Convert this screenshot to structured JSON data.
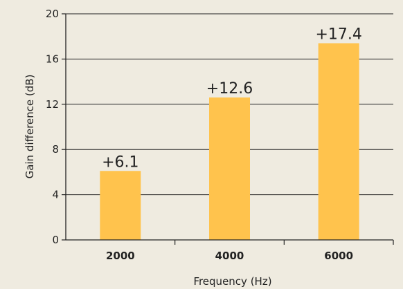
{
  "chart_data": {
    "type": "bar",
    "categories": [
      "2000",
      "4000",
      "6000"
    ],
    "values": [
      6.1,
      12.6,
      17.4
    ],
    "data_labels": [
      "+6.1",
      "+12.6",
      "+17.4"
    ],
    "xlabel": "Frequency (Hz)",
    "ylabel": "Gain difference (dB)",
    "ylim": [
      0,
      20
    ],
    "yticks": [
      0,
      4,
      8,
      12,
      16,
      20
    ],
    "grid": "horizontal",
    "bar_color": "#ffc34d",
    "grid_color": "#222222",
    "background": "#efebe0"
  }
}
